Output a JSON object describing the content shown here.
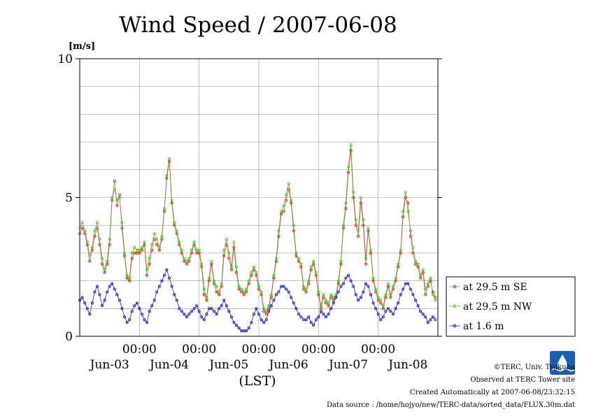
{
  "colors": {
    "se": "#ff0000",
    "nw": "#00ee00",
    "low": "#0000ff",
    "line": "#a66a2a",
    "grid": "#999999",
    "logo": "#1a5fb4"
  },
  "logo": {
    "name": "terc-logo",
    "text": "TERC"
  },
  "credits": {
    "line1": "©TERC, Univ. Tsukuba",
    "line2": "Observed at TERC Tower site",
    "line3": "Created Automatically at 2007-06-08/23:32:15",
    "line4": "Data source : /home/hojyo/new/TERC-data/sorted_data/FLUX.30m.dat"
  },
  "chart_data": {
    "type": "line",
    "title": "Wind Speed / 2007-06-08",
    "ylabel": "[m/s]",
    "xlabel": "(LST)",
    "ylim": [
      0,
      10
    ],
    "yticks": [
      0,
      5,
      10
    ],
    "xlim_hours": [
      0,
      144
    ],
    "time_tick_labels": [
      "00:00",
      "00:00",
      "00:00",
      "00:00",
      "00:00"
    ],
    "day_labels": [
      "Jun-03",
      "Jun-04",
      "Jun-05",
      "Jun-06",
      "Jun-07",
      "Jun-08"
    ],
    "grid": true,
    "legend_position": "right",
    "series": [
      {
        "name": "at 29.5 m SE",
        "key": "se",
        "marker": "circle",
        "x_step_hours": 1,
        "values": [
          3.7,
          3.9,
          3.7,
          3.3,
          2.7,
          3.1,
          3.6,
          3.9,
          3.3,
          2.6,
          2.3,
          2.6,
          3.3,
          4.9,
          5.6,
          4.7,
          5.1,
          3.9,
          2.9,
          2.1,
          2.0,
          2.8,
          3.0,
          3.0,
          3.0,
          3.1,
          3.3,
          2.2,
          2.6,
          3.1,
          3.5,
          3.3,
          3.1,
          3.5,
          4.5,
          5.7,
          6.3,
          4.8,
          4.0,
          3.7,
          3.3,
          3.0,
          2.7,
          2.6,
          2.7,
          3.0,
          3.3,
          3.0,
          3.0,
          2.5,
          1.5,
          1.3,
          2.0,
          2.6,
          1.9,
          1.6,
          1.5,
          1.8,
          2.9,
          3.3,
          2.8,
          2.4,
          3.2,
          2.3,
          1.7,
          1.6,
          1.5,
          1.6,
          1.9,
          2.2,
          2.4,
          2.2,
          1.7,
          1.5,
          0.9,
          0.8,
          1.0,
          1.4,
          2.1,
          2.7,
          3.6,
          4.4,
          4.5,
          4.9,
          5.3,
          4.8,
          3.8,
          2.9,
          2.7,
          2.5,
          1.7,
          1.6,
          1.9,
          2.4,
          2.6,
          2.2,
          1.5,
          1.0,
          1.4,
          1.2,
          1.1,
          1.4,
          1.3,
          1.4,
          1.9,
          2.6,
          3.9,
          4.6,
          5.9,
          6.7,
          5.0,
          4.0,
          3.6,
          4.8,
          4.0,
          2.6,
          3.8,
          3.0,
          2.0,
          1.6,
          1.3,
          1.2,
          1.0,
          1.4,
          1.8,
          1.4,
          1.7,
          2.0,
          2.5,
          3.0,
          4.3,
          5.0,
          4.8,
          3.6,
          3.0,
          2.6,
          2.5,
          2.1,
          2.3,
          1.5,
          1.8,
          2.0,
          1.6,
          1.4
        ]
      },
      {
        "name": "at 29.5 m NW",
        "key": "nw",
        "marker": "circle",
        "x_step_hours": 1,
        "values": [
          3.9,
          4.1,
          3.8,
          3.4,
          2.9,
          3.2,
          3.8,
          4.1,
          3.5,
          2.8,
          2.4,
          2.7,
          3.5,
          5.0,
          5.3,
          4.9,
          5.0,
          4.1,
          3.0,
          2.2,
          2.1,
          3.0,
          3.2,
          3.1,
          3.1,
          3.2,
          3.4,
          2.4,
          2.8,
          3.3,
          3.7,
          3.5,
          3.2,
          3.6,
          4.6,
          5.8,
          6.4,
          4.9,
          4.1,
          3.8,
          3.4,
          3.1,
          2.8,
          2.7,
          2.8,
          3.1,
          3.4,
          3.1,
          3.1,
          2.6,
          1.7,
          1.4,
          2.1,
          2.7,
          2.0,
          1.8,
          1.6,
          1.9,
          3.1,
          3.5,
          3.0,
          2.5,
          3.4,
          2.5,
          1.8,
          1.7,
          1.6,
          1.7,
          2.0,
          2.3,
          2.5,
          2.3,
          1.8,
          1.6,
          1.0,
          0.9,
          1.1,
          1.5,
          2.2,
          2.8,
          3.8,
          4.5,
          4.7,
          5.1,
          5.5,
          4.9,
          4.0,
          3.0,
          2.8,
          2.6,
          1.8,
          1.7,
          2.0,
          2.5,
          2.7,
          2.3,
          1.6,
          1.1,
          1.5,
          1.3,
          1.2,
          1.5,
          1.4,
          1.5,
          2.0,
          2.7,
          4.0,
          4.8,
          6.1,
          6.9,
          5.2,
          4.2,
          3.8,
          5.0,
          4.2,
          2.8,
          3.9,
          3.1,
          2.1,
          1.7,
          1.4,
          1.3,
          1.1,
          1.5,
          1.9,
          1.5,
          1.8,
          2.1,
          2.6,
          3.1,
          4.5,
          5.2,
          4.5,
          3.8,
          3.2,
          2.7,
          2.6,
          2.2,
          2.4,
          1.7,
          1.9,
          2.1,
          1.5,
          1.3
        ]
      },
      {
        "name": "at 1.6 m",
        "key": "low",
        "marker": "circle",
        "x_step_hours": 1,
        "values": [
          1.3,
          1.4,
          1.2,
          1.0,
          0.8,
          1.2,
          1.6,
          1.8,
          1.5,
          1.1,
          1.3,
          1.6,
          1.8,
          1.9,
          1.7,
          1.5,
          1.3,
          1.0,
          0.7,
          0.5,
          0.6,
          0.9,
          1.1,
          1.2,
          1.0,
          0.8,
          0.6,
          0.5,
          0.9,
          1.1,
          1.3,
          1.6,
          1.8,
          2.0,
          2.2,
          2.4,
          2.1,
          1.8,
          1.5,
          1.3,
          1.0,
          0.9,
          0.8,
          0.7,
          0.8,
          0.9,
          1.0,
          1.1,
          0.9,
          0.7,
          0.6,
          0.8,
          1.0,
          1.0,
          0.9,
          0.8,
          1.0,
          1.1,
          1.3,
          1.1,
          0.9,
          0.7,
          0.5,
          0.4,
          0.3,
          0.2,
          0.2,
          0.2,
          0.3,
          0.5,
          0.8,
          1.0,
          0.8,
          0.6,
          0.5,
          0.6,
          0.9,
          1.1,
          1.3,
          1.5,
          1.6,
          1.8,
          1.8,
          1.7,
          1.6,
          1.4,
          1.2,
          1.0,
          0.8,
          0.7,
          0.6,
          0.6,
          0.7,
          0.5,
          0.4,
          0.6,
          0.7,
          0.9,
          0.8,
          0.7,
          0.8,
          1.0,
          1.2,
          1.4,
          1.6,
          1.8,
          1.9,
          2.1,
          2.2,
          2.0,
          1.8,
          1.5,
          1.3,
          1.4,
          1.6,
          1.9,
          1.8,
          1.5,
          1.2,
          1.0,
          0.8,
          0.6,
          0.7,
          0.9,
          1.0,
          0.9,
          0.8,
          1.0,
          1.2,
          1.5,
          1.7,
          1.9,
          1.9,
          1.7,
          1.5,
          1.3,
          1.1,
          0.9,
          0.8,
          0.7,
          0.5,
          0.6,
          0.7,
          0.6
        ]
      }
    ]
  }
}
